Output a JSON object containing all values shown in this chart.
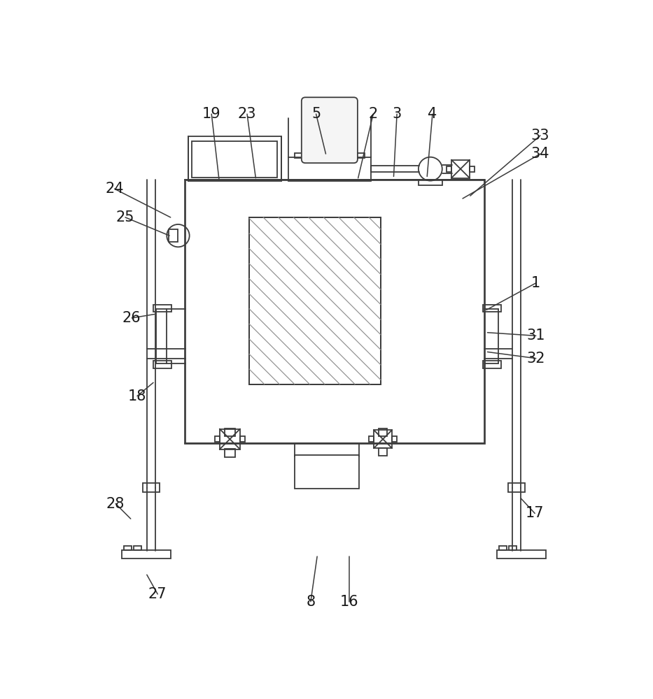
{
  "bg": "#ffffff",
  "lc": "#3c3c3c",
  "lw": 1.3,
  "hlc": "#909090",
  "hlw": 0.85,
  "lfs": 15,
  "lclr": "#1a1a1a",
  "annotations": [
    [
      "19",
      238,
      56,
      252,
      178
    ],
    [
      "23",
      304,
      56,
      320,
      175
    ],
    [
      "5",
      432,
      56,
      450,
      130
    ],
    [
      "2",
      538,
      56,
      510,
      175
    ],
    [
      "3",
      582,
      56,
      576,
      172
    ],
    [
      "4",
      648,
      56,
      638,
      172
    ],
    [
      "33",
      848,
      96,
      718,
      208
    ],
    [
      "34",
      848,
      130,
      704,
      213
    ],
    [
      "1",
      840,
      370,
      748,
      420
    ],
    [
      "31",
      840,
      468,
      750,
      462
    ],
    [
      "32",
      840,
      510,
      750,
      498
    ],
    [
      "24",
      58,
      195,
      162,
      248
    ],
    [
      "25",
      78,
      248,
      160,
      282
    ],
    [
      "26",
      90,
      435,
      132,
      428
    ],
    [
      "18",
      100,
      580,
      130,
      555
    ],
    [
      "8",
      422,
      962,
      434,
      878
    ],
    [
      "16",
      494,
      962,
      494,
      878
    ],
    [
      "17",
      838,
      798,
      812,
      770
    ],
    [
      "27",
      138,
      948,
      118,
      912
    ],
    [
      "28",
      60,
      780,
      88,
      808
    ]
  ]
}
